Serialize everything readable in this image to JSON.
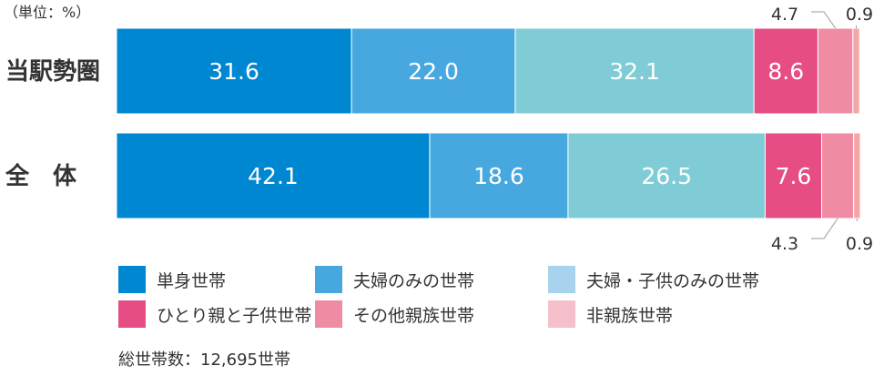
{
  "unit_note": "（単位：%）",
  "total_note": "総世帯数：12,695世帯",
  "chart_data": {
    "type": "bar",
    "orientation": "horizontal-stacked-100",
    "categories": [
      "当駅勢圏",
      "全　体"
    ],
    "xlim": [
      0,
      100
    ],
    "series": [
      {
        "name": "単身世帯",
        "color": "#0087d1",
        "values": [
          31.6,
          42.1
        ]
      },
      {
        "name": "夫婦のみの世帯",
        "color": "#47a8e0",
        "values": [
          22.0,
          18.6
        ]
      },
      {
        "name": "夫婦・子供のみの世帯",
        "color": "#80ccd6",
        "values": [
          32.1,
          26.5
        ]
      },
      {
        "name": "ひとり親と子供世帯",
        "color": "#e64d84",
        "values": [
          8.6,
          7.6
        ]
      },
      {
        "name": "その他親族世帯",
        "color": "#ef8ca4",
        "values": [
          4.7,
          4.3
        ]
      },
      {
        "name": "非親族世帯",
        "color": "#f5a7a7",
        "values": [
          0.9,
          0.9
        ]
      }
    ],
    "legend_swatch_colors": [
      "#0087d1",
      "#47a8e0",
      "#a8d3ee",
      "#e64d84",
      "#ef8ca4",
      "#f5c0cb"
    ],
    "legend_placement": "bottom",
    "grid": false
  }
}
